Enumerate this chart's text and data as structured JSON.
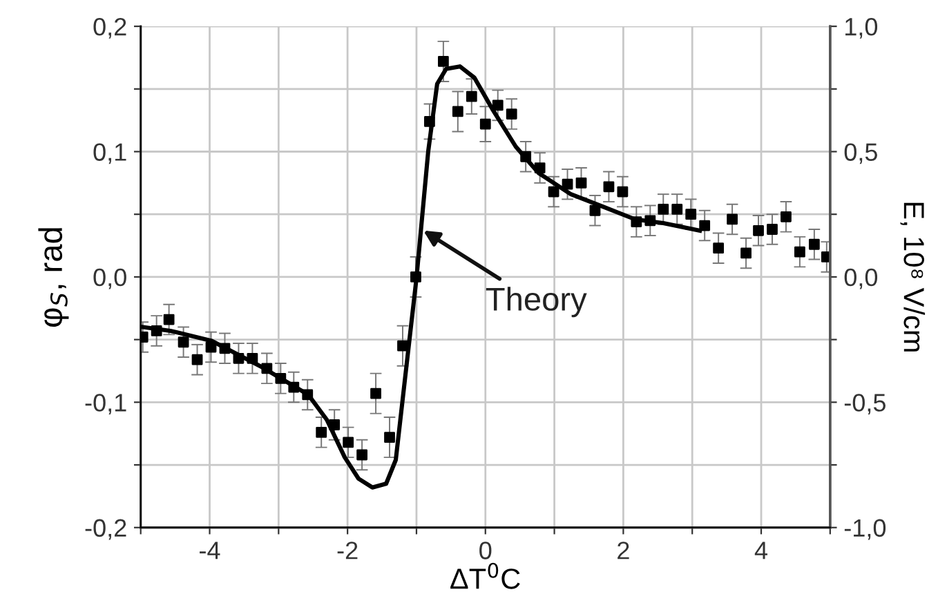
{
  "chart_data": {
    "type": "scatter",
    "xlabel": "ΔT$^{0}$C",
    "ylabel": "φ$_{S}$, rad",
    "y2label": "E, 10⁸ V/cm",
    "xlim": [
      -5,
      5
    ],
    "xticks": [
      {
        "value": -5,
        "label": null
      },
      -4,
      {
        "value": -3,
        "label": null
      },
      -2,
      {
        "value": -1,
        "label": null
      },
      0,
      {
        "value": 1,
        "label": null
      },
      2,
      {
        "value": 3,
        "label": null
      },
      4,
      {
        "value": 5,
        "label": null
      }
    ],
    "ylim": [
      -0.2,
      0.2
    ],
    "yticks": [
      {
        "value": -0.2,
        "label": "-0,2"
      },
      {
        "value": -0.15,
        "label": null
      },
      {
        "value": -0.1,
        "label": "-0,1"
      },
      {
        "value": -0.05,
        "label": null
      },
      {
        "value": 0,
        "label": "0,0"
      },
      {
        "value": 0.05,
        "label": null
      },
      {
        "value": 0.1,
        "label": "0,1"
      },
      {
        "value": 0.15,
        "label": null
      },
      {
        "value": 0.2,
        "label": "0,2"
      }
    ],
    "y2lim": [
      -1,
      1
    ],
    "y2ticks": [
      {
        "value": -1,
        "label": "-1,0"
      },
      {
        "value": -0.75,
        "label": null
      },
      {
        "value": -0.5,
        "label": "-0,5"
      },
      {
        "value": -0.25,
        "label": null
      },
      {
        "value": 0,
        "label": "0,0"
      },
      {
        "value": 0.25,
        "label": null
      },
      {
        "value": 0.5,
        "label": "0,5"
      },
      {
        "value": 0.75,
        "label": null
      },
      {
        "value": 1,
        "label": "1,0"
      }
    ],
    "grid": true,
    "series": [
      {
        "color": "#000000",
        "marker": "square",
        "x": [
          -4.97,
          -4.77,
          -4.59,
          -4.38,
          -4.18,
          -3.98,
          -3.78,
          -3.58,
          -3.38,
          -3.17,
          -2.97,
          -2.78,
          -2.58,
          -2.38,
          -2.19,
          -1.99,
          -1.79,
          -1.59,
          -1.39,
          -1.2,
          -1.01,
          -0.81,
          -0.61,
          -0.4,
          -0.2,
          0.0,
          0.18,
          0.38,
          0.585,
          0.79,
          0.99,
          1.19,
          1.39,
          1.59,
          1.79,
          1.99,
          2.19,
          2.39,
          2.58,
          2.78,
          2.98,
          3.18,
          3.38,
          3.58,
          3.78,
          3.96,
          4.16,
          4.36,
          4.56,
          4.77,
          4.95
        ],
        "values": [
          -0.048,
          -0.043,
          -0.034,
          -0.052,
          -0.066,
          -0.056,
          -0.057,
          -0.065,
          -0.065,
          -0.073,
          -0.081,
          -0.088,
          -0.094,
          -0.124,
          -0.118,
          -0.132,
          -0.142,
          -0.093,
          -0.128,
          -0.055,
          0.0,
          0.124,
          0.172,
          0.132,
          0.144,
          0.122,
          0.137,
          0.13,
          0.096,
          0.087,
          0.068,
          0.074,
          0.075,
          0.053,
          0.072,
          0.068,
          0.044,
          0.045,
          0.054,
          0.054,
          0.05,
          0.041,
          0.023,
          0.046,
          0.019,
          0.037,
          0.038,
          0.048,
          0.02,
          0.026,
          0.016
        ],
        "errors": [
          0.012,
          0.012,
          0.012,
          0.012,
          0.012,
          0.012,
          0.012,
          0.012,
          0.012,
          0.012,
          0.012,
          0.012,
          0.012,
          0.012,
          0.012,
          0.012,
          0.012,
          0.016,
          0.016,
          0.016,
          0.016,
          0.014,
          0.016,
          0.016,
          0.014,
          0.014,
          0.012,
          0.012,
          0.012,
          0.012,
          0.012,
          0.012,
          0.012,
          0.012,
          0.012,
          0.012,
          0.012,
          0.012,
          0.012,
          0.012,
          0.012,
          0.012,
          0.012,
          0.012,
          0.012,
          0.012,
          0.012,
          0.012,
          0.012,
          0.012,
          0.012
        ]
      },
      {
        "type": "line",
        "color": "#000000",
        "marker": "none",
        "line_style": "solid",
        "x": [
          -4.97,
          -4.57,
          -3.97,
          -3.24,
          -2.57,
          -2.3,
          -2.04,
          -1.84,
          -1.64,
          -1.44,
          -1.3,
          -1.17,
          -1.0,
          -0.83,
          -0.7,
          -0.57,
          -0.37,
          -0.16,
          0.1,
          0.44,
          0.77,
          1.24,
          1.71,
          2.17,
          2.58,
          3.11
        ],
        "values": [
          -0.04,
          -0.043,
          -0.051,
          -0.072,
          -0.094,
          -0.114,
          -0.144,
          -0.161,
          -0.168,
          -0.165,
          -0.146,
          -0.083,
          -0.001,
          0.1,
          0.154,
          0.166,
          0.168,
          0.159,
          0.134,
          0.104,
          0.083,
          0.066,
          0.056,
          0.046,
          0.043,
          0.037
        ]
      }
    ],
    "annotations": [
      {
        "text": "Theory",
        "x": -0.9,
        "y": 0.037
      }
    ]
  }
}
